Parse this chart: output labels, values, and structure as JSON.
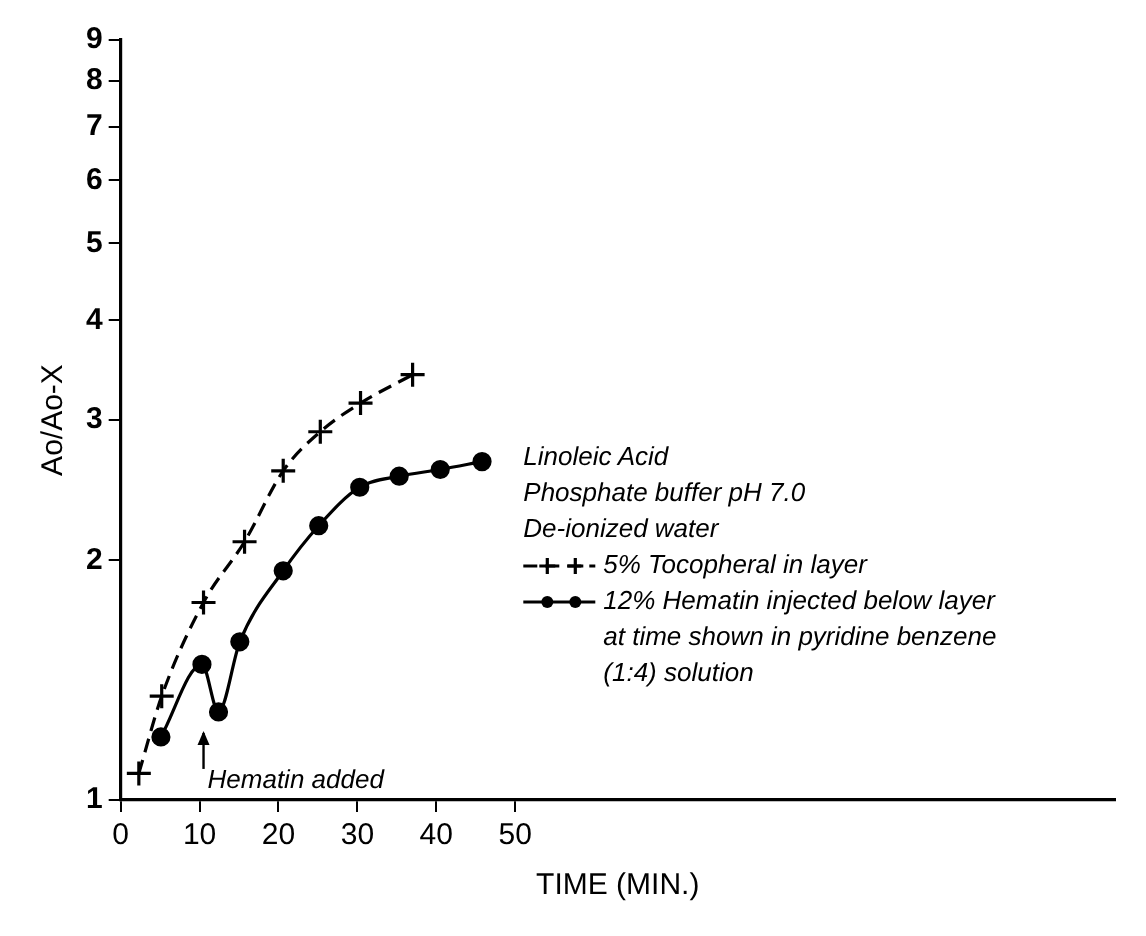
{
  "chart_data": {
    "type": "line",
    "xlabel": "TIME (MIN.)",
    "ylabel": "Ao/Ao-X",
    "xlim": [
      0,
      126
    ],
    "xticks": [
      0,
      10,
      20,
      30,
      40,
      50
    ],
    "ylim": [
      1,
      9
    ],
    "yticks": [
      1,
      2,
      3,
      4,
      5,
      6,
      7,
      8,
      9
    ],
    "log": "y",
    "grid": false,
    "legend": "right",
    "annotations": [
      "Linoleic Acid",
      "Phosphate buffer pH 7.0",
      "De-ionized water",
      {
        "text": "Hematin added",
        "x": 10.5,
        "y": 1.2
      }
    ],
    "series": [
      {
        "name": "5% Tocopheral in layer",
        "color": "#000000",
        "marker": "cross",
        "line_style": "dashed",
        "x": [
          2.3,
          5.2,
          10.5,
          15.7,
          20.6,
          25.3,
          30.4,
          37.0
        ],
        "values": [
          1.08,
          1.35,
          1.77,
          2.11,
          2.59,
          2.9,
          3.15,
          3.42
        ]
      },
      {
        "name": "12% Hematin injected below layer at time shown in pyridine benzene (1:4) solution",
        "color": "#000000",
        "marker": "circle",
        "line_style": "solid",
        "x": [
          5.1,
          10.3,
          12.4,
          15.1,
          20.6,
          25.1,
          30.3,
          35.3,
          40.5,
          45.8
        ],
        "values": [
          1.2,
          1.48,
          1.29,
          1.58,
          1.94,
          2.21,
          2.47,
          2.55,
          2.6,
          2.66
        ]
      }
    ]
  }
}
